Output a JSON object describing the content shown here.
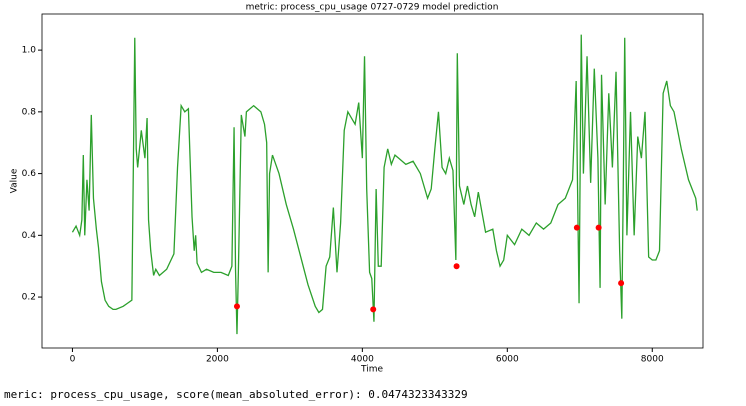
{
  "chart_data": {
    "type": "line",
    "title": "metric: process_cpu_usage 0727-0729 model prediction",
    "xlabel": "Time",
    "ylabel": "Value",
    "color": "#2ca02c",
    "x": [
      0,
      50,
      100,
      130,
      150,
      170,
      200,
      230,
      260,
      290,
      330,
      360,
      400,
      450,
      500,
      560,
      600,
      700,
      760,
      820,
      860,
      880,
      900,
      950,
      1000,
      1030,
      1050,
      1080,
      1120,
      1150,
      1200,
      1300,
      1400,
      1450,
      1500,
      1550,
      1600,
      1650,
      1680,
      1700,
      1720,
      1780,
      1850,
      1950,
      2050,
      2150,
      2200,
      2230,
      2250,
      2270,
      2290,
      2330,
      2380,
      2400,
      2500,
      2600,
      2650,
      2680,
      2700,
      2720,
      2760,
      2850,
      2950,
      3050,
      3150,
      3250,
      3350,
      3400,
      3450,
      3500,
      3550,
      3600,
      3650,
      3700,
      3750,
      3800,
      3850,
      3900,
      3950,
      4000,
      4030,
      4060,
      4100,
      4130,
      4160,
      4190,
      4220,
      4260,
      4300,
      4350,
      4400,
      4450,
      4500,
      4600,
      4700,
      4800,
      4900,
      4950,
      5000,
      5050,
      5100,
      5150,
      5200,
      5250,
      5290,
      5310,
      5340,
      5400,
      5450,
      5500,
      5550,
      5600,
      5700,
      5800,
      5850,
      5900,
      5950,
      6000,
      6100,
      6200,
      6300,
      6400,
      6500,
      6600,
      6700,
      6800,
      6900,
      6950,
      6990,
      7020,
      7050,
      7100,
      7150,
      7200,
      7250,
      7280,
      7300,
      7350,
      7400,
      7450,
      7500,
      7550,
      7580,
      7600,
      7620,
      7650,
      7700,
      7750,
      7800,
      7850,
      7900,
      7950,
      8000,
      8050,
      8100,
      8150,
      8200,
      8250,
      8300,
      8400,
      8500,
      8600,
      8620
    ],
    "values": [
      0.41,
      0.43,
      0.4,
      0.45,
      0.66,
      0.4,
      0.58,
      0.48,
      0.79,
      0.52,
      0.42,
      0.36,
      0.25,
      0.19,
      0.17,
      0.16,
      0.16,
      0.17,
      0.18,
      0.19,
      1.04,
      0.68,
      0.62,
      0.74,
      0.65,
      0.78,
      0.45,
      0.35,
      0.27,
      0.29,
      0.27,
      0.29,
      0.34,
      0.62,
      0.82,
      0.8,
      0.81,
      0.46,
      0.35,
      0.4,
      0.31,
      0.28,
      0.29,
      0.28,
      0.28,
      0.27,
      0.3,
      0.75,
      0.29,
      0.08,
      0.29,
      0.79,
      0.72,
      0.8,
      0.82,
      0.8,
      0.76,
      0.7,
      0.28,
      0.6,
      0.66,
      0.6,
      0.5,
      0.42,
      0.33,
      0.24,
      0.17,
      0.15,
      0.16,
      0.3,
      0.33,
      0.49,
      0.28,
      0.44,
      0.74,
      0.8,
      0.78,
      0.76,
      0.83,
      0.65,
      0.98,
      0.55,
      0.28,
      0.26,
      0.12,
      0.55,
      0.3,
      0.3,
      0.62,
      0.68,
      0.63,
      0.66,
      0.65,
      0.63,
      0.64,
      0.6,
      0.52,
      0.55,
      0.68,
      0.8,
      0.62,
      0.6,
      0.65,
      0.61,
      0.32,
      0.99,
      0.56,
      0.5,
      0.56,
      0.5,
      0.46,
      0.54,
      0.41,
      0.42,
      0.35,
      0.3,
      0.32,
      0.4,
      0.37,
      0.42,
      0.4,
      0.44,
      0.42,
      0.44,
      0.5,
      0.52,
      0.58,
      0.9,
      0.18,
      1.05,
      0.6,
      0.98,
      0.57,
      0.94,
      0.65,
      0.23,
      0.92,
      0.5,
      0.86,
      0.62,
      0.93,
      0.35,
      0.13,
      0.56,
      1.04,
      0.4,
      0.8,
      0.4,
      0.72,
      0.65,
      0.8,
      0.33,
      0.32,
      0.32,
      0.35,
      0.86,
      0.9,
      0.82,
      0.8,
      0.68,
      0.58,
      0.52,
      0.48
    ],
    "anomalies": {
      "x": [
        2270,
        4150,
        5300,
        6960,
        7260,
        7570
      ],
      "values": [
        0.17,
        0.16,
        0.3,
        0.425,
        0.425,
        0.245
      ],
      "color": "#ff0000"
    },
    "xlim": [
      -420,
      8700
    ],
    "ylim": [
      0.035,
      1.117
    ],
    "xticks": [
      0,
      2000,
      4000,
      6000,
      8000
    ],
    "yticks": [
      0.2,
      0.4,
      0.6,
      0.8,
      {
        "value": 1,
        "label": "1.0"
      }
    ]
  },
  "output_text": "meric: process_cpu_usage, score(mean_absoluted_error): 0.0474323343329"
}
